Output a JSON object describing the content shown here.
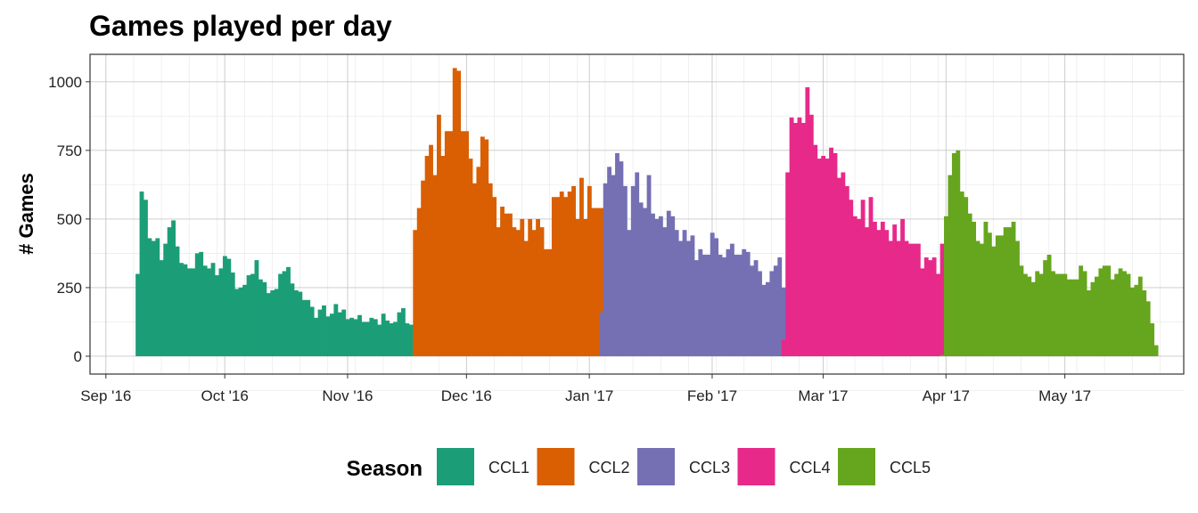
{
  "chart_data": {
    "type": "bar",
    "title": "Games played per day",
    "xlabel": "",
    "ylabel": "# Games",
    "x_axis_type": "date",
    "xlim": [
      "2016-08-28",
      "2017-05-31"
    ],
    "ylim": [
      -65,
      1100
    ],
    "y_ticks": [
      0,
      250,
      500,
      750,
      1000
    ],
    "x_ticks": [
      {
        "date": "2016-09-01",
        "label": "Sep '16"
      },
      {
        "date": "2016-10-01",
        "label": "Oct '16"
      },
      {
        "date": "2016-11-01",
        "label": "Nov '16"
      },
      {
        "date": "2016-12-01",
        "label": "Dec '16"
      },
      {
        "date": "2017-01-01",
        "label": "Jan '17"
      },
      {
        "date": "2017-02-01",
        "label": "Feb '17"
      },
      {
        "date": "2017-03-01",
        "label": "Mar '17"
      },
      {
        "date": "2017-04-01",
        "label": "Apr '17"
      },
      {
        "date": "2017-05-01",
        "label": "May '17"
      }
    ],
    "grid": true,
    "legend": {
      "title": "Season",
      "position": "bottom"
    },
    "series": [
      {
        "name": "CCL1",
        "color": "#1b9e77",
        "start_date": "2016-09-09",
        "values": [
          300,
          600,
          570,
          430,
          420,
          430,
          350,
          410,
          470,
          495,
          400,
          340,
          335,
          320,
          320,
          375,
          380,
          330,
          320,
          340,
          295,
          320,
          365,
          355,
          305,
          245,
          250,
          260,
          295,
          300,
          350,
          280,
          270,
          230,
          240,
          245,
          300,
          310,
          325,
          265,
          240,
          235,
          205,
          205,
          180,
          140,
          170,
          185,
          145,
          155,
          190,
          160,
          170,
          135,
          140,
          135,
          150,
          125,
          125,
          140,
          135,
          115,
          155,
          130,
          120,
          125,
          160,
          175,
          120,
          115
        ]
      },
      {
        "name": "CCL2",
        "color": "#d95f02",
        "start_date": "2016-11-18",
        "values": [
          460,
          540,
          640,
          730,
          770,
          660,
          880,
          730,
          820,
          820,
          1050,
          1040,
          820,
          820,
          720,
          630,
          690,
          800,
          790,
          630,
          580,
          470,
          545,
          520,
          520,
          470,
          460,
          500,
          420,
          500,
          460,
          500,
          470,
          390,
          390,
          580,
          580,
          600,
          580,
          600,
          620,
          500,
          650,
          500,
          620,
          540,
          540,
          540
        ]
      },
      {
        "name": "CCL3",
        "color": "#7570b3",
        "start_date": "2017-01-04",
        "values": [
          160,
          630,
          690,
          660,
          740,
          710,
          620,
          460,
          620,
          670,
          560,
          540,
          660,
          520,
          500,
          510,
          470,
          530,
          510,
          460,
          420,
          460,
          420,
          440,
          350,
          390,
          370,
          370,
          450,
          430,
          370,
          360,
          390,
          410,
          370,
          370,
          390,
          380,
          330,
          350,
          310,
          260,
          270,
          310,
          330,
          360,
          250
        ]
      },
      {
        "name": "CCL4",
        "color": "#e7298a",
        "start_date": "2017-02-19",
        "values": [
          60,
          670,
          870,
          850,
          870,
          850,
          980,
          880,
          770,
          720,
          730,
          720,
          760,
          740,
          650,
          670,
          620,
          570,
          510,
          500,
          570,
          470,
          580,
          490,
          460,
          490,
          460,
          420,
          480,
          420,
          500,
          420,
          410,
          410,
          410,
          320,
          360,
          350,
          360,
          300,
          410,
          440,
          470,
          300,
          290,
          310,
          260,
          200,
          170,
          180
        ]
      },
      {
        "name": "CCL5",
        "color": "#66a61e",
        "start_date": "2017-03-31",
        "values": [
          5,
          510,
          660,
          740,
          750,
          600,
          580,
          520,
          490,
          420,
          410,
          490,
          450,
          400,
          440,
          440,
          470,
          470,
          490,
          420,
          330,
          300,
          290,
          270,
          310,
          300,
          350,
          370,
          310,
          300,
          300,
          300,
          280,
          280,
          280,
          330,
          310,
          240,
          270,
          290,
          320,
          330,
          330,
          280,
          300,
          320,
          310,
          300,
          250,
          260,
          290,
          240,
          200,
          120,
          40
        ]
      }
    ]
  }
}
